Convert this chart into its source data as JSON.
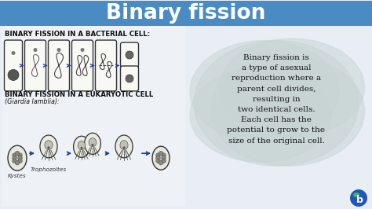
{
  "title": "Binary fission",
  "title_bg_color": "#4A8BC4",
  "title_text_color": "#FFFFFF",
  "main_bg_color": "#E8EEF4",
  "bacterial_label": "BINARY FISSION IN A BACTERIAL CELL:",
  "eukaryotic_label": "BINARY FISSION IN A EUKARYOTIC CELL",
  "eukaryotic_sublabel": "(Giardia lamblia):",
  "kyst_label": "Kystes",
  "tropho_label": "Trophozoltes",
  "definition_text": "Binary fission is\na type of asexual\nreproduction where a\nparent cell divides,\nresulting in\ntwo identical cells.\nEach cell has the\npotential to grow to the\nsize of the original cell.",
  "definition_bg_color": "#C8D4D4",
  "definition_text_color": "#111111",
  "cell_face": "#F2F2EE",
  "cell_edge": "#333333",
  "arrow_color": "#1E3DAA",
  "label_color": "#111111"
}
